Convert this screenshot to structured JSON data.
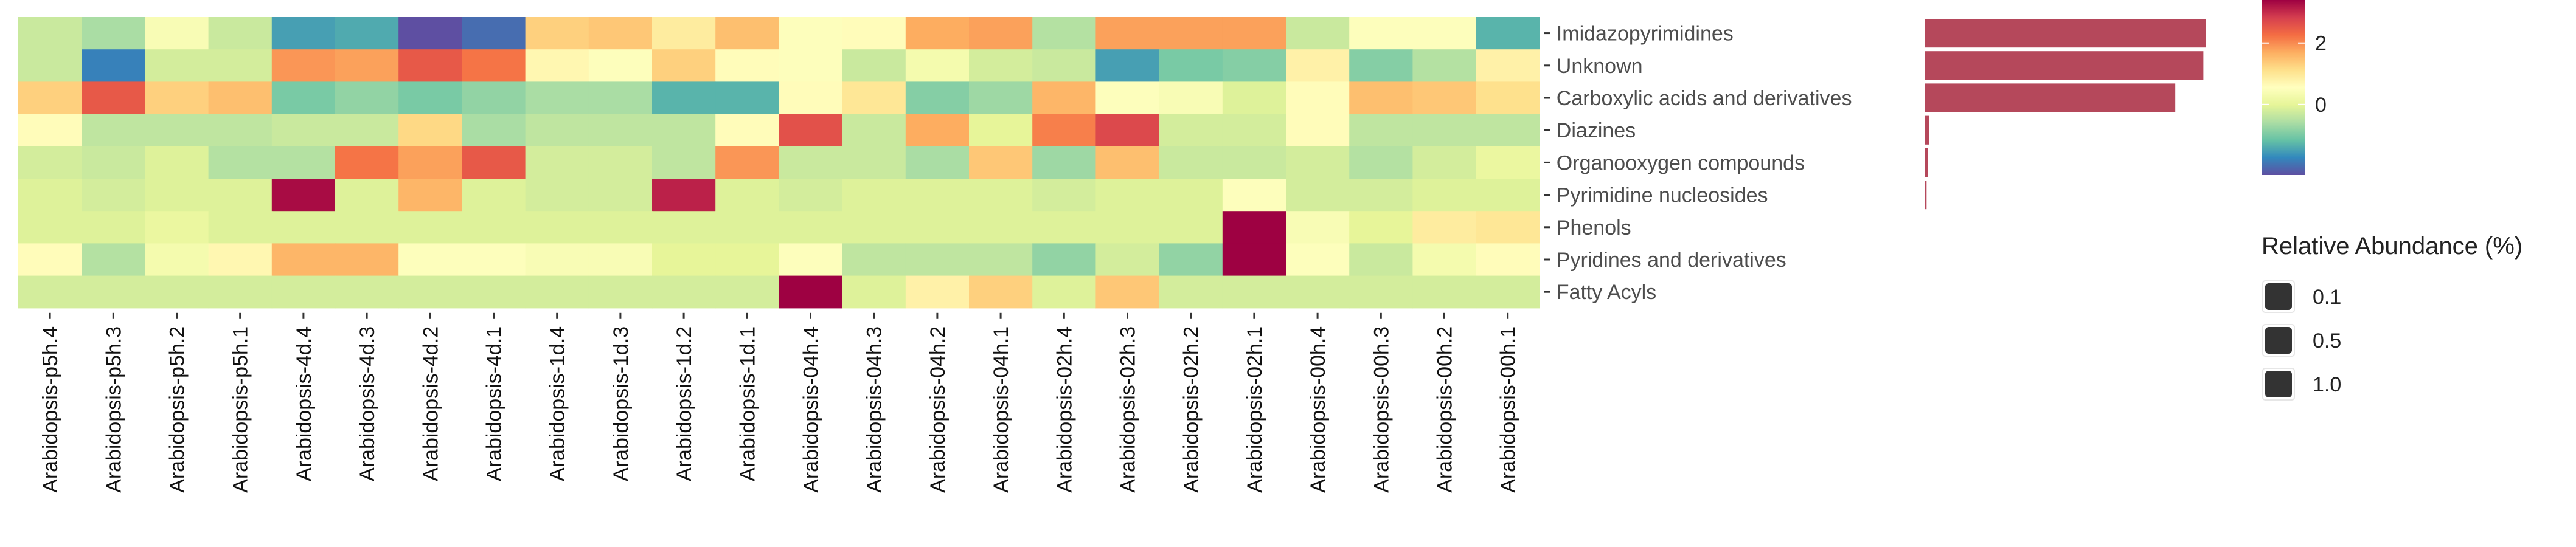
{
  "chart_data": {
    "type": "heatmap",
    "title": "",
    "xlabel": "",
    "ylabel": "",
    "columns": [
      "Arabidopsis-p5h.4",
      "Arabidopsis-p5h.3",
      "Arabidopsis-p5h.2",
      "Arabidopsis-p5h.1",
      "Arabidopsis-4d.4",
      "Arabidopsis-4d.3",
      "Arabidopsis-4d.2",
      "Arabidopsis-4d.1",
      "Arabidopsis-1d.4",
      "Arabidopsis-1d.3",
      "Arabidopsis-1d.2",
      "Arabidopsis-1d.1",
      "Arabidopsis-04h.4",
      "Arabidopsis-04h.3",
      "Arabidopsis-04h.2",
      "Arabidopsis-04h.1",
      "Arabidopsis-02h.4",
      "Arabidopsis-02h.3",
      "Arabidopsis-02h.2",
      "Arabidopsis-02h.1",
      "Arabidopsis-00h.4",
      "Arabidopsis-00h.3",
      "Arabidopsis-00h.2",
      "Arabidopsis-00h.1"
    ],
    "rows": [
      "Imidazopyrimidines",
      "Unknown",
      "Carboxylic acids and derivatives",
      "Diazines",
      "Organooxygen compounds",
      "Pyrimidine nucleosides",
      "Phenols",
      "Pyridines and derivatives",
      "Fatty Acyls"
    ],
    "values": [
      [
        -0.3,
        -0.6,
        0.4,
        -0.3,
        -1.5,
        -1.4,
        -2.3,
        -2.0,
        1.3,
        1.4,
        0.9,
        1.5,
        0.5,
        0.6,
        1.7,
        1.8,
        -0.5,
        1.8,
        1.8,
        1.8,
        -0.3,
        0.5,
        0.5,
        -1.3
      ],
      [
        -0.3,
        -1.8,
        -0.2,
        -0.2,
        1.9,
        1.8,
        2.5,
        2.2,
        0.7,
        0.5,
        1.3,
        0.6,
        0.5,
        -0.3,
        0.3,
        -0.2,
        -0.3,
        -1.5,
        -1.0,
        -0.9,
        0.8,
        -0.9,
        -0.5,
        0.8
      ],
      [
        1.3,
        2.5,
        1.3,
        1.5,
        -1.0,
        -0.8,
        -1.0,
        -0.8,
        -0.6,
        -0.6,
        -1.3,
        -1.3,
        0.6,
        1.0,
        -0.9,
        -0.7,
        1.6,
        0.5,
        0.4,
        -0.1,
        0.6,
        1.5,
        1.4,
        1.1
      ],
      [
        0.6,
        -0.4,
        -0.4,
        -0.4,
        -0.3,
        -0.3,
        1.2,
        -0.6,
        -0.4,
        -0.4,
        -0.4,
        0.6,
        2.6,
        -0.3,
        1.7,
        0.0,
        2.1,
        2.7,
        -0.2,
        -0.2,
        0.6,
        -0.4,
        -0.4,
        -0.4
      ],
      [
        -0.2,
        -0.3,
        -0.1,
        -0.5,
        -0.5,
        2.2,
        1.8,
        2.5,
        -0.2,
        -0.2,
        -0.4,
        1.9,
        -0.3,
        -0.3,
        -0.6,
        1.4,
        -0.7,
        1.5,
        -0.3,
        -0.3,
        -0.2,
        -0.5,
        -0.2,
        0.1
      ],
      [
        -0.1,
        -0.2,
        -0.1,
        -0.1,
        3.3,
        -0.1,
        1.6,
        -0.1,
        -0.2,
        -0.2,
        3.1,
        -0.1,
        -0.2,
        -0.1,
        -0.1,
        -0.1,
        -0.2,
        -0.1,
        -0.1,
        0.5,
        -0.2,
        -0.2,
        -0.1,
        -0.1
      ],
      [
        -0.1,
        -0.1,
        0.1,
        -0.1,
        -0.1,
        -0.1,
        -0.1,
        -0.1,
        -0.1,
        -0.1,
        -0.1,
        -0.1,
        -0.1,
        -0.1,
        -0.1,
        -0.1,
        -0.1,
        -0.1,
        -0.1,
        4.6,
        0.4,
        0.0,
        0.9,
        1.0
      ],
      [
        0.6,
        -0.5,
        0.3,
        0.7,
        1.6,
        1.6,
        0.5,
        0.5,
        0.4,
        0.4,
        0.0,
        0.0,
        0.5,
        -0.4,
        -0.4,
        -0.4,
        -0.8,
        -0.2,
        -0.8,
        4.2,
        0.5,
        -0.3,
        0.3,
        0.6
      ],
      [
        -0.2,
        -0.2,
        -0.2,
        -0.2,
        -0.2,
        -0.2,
        -0.2,
        -0.2,
        -0.2,
        -0.2,
        -0.2,
        -0.2,
        4.2,
        -0.1,
        0.8,
        1.3,
        -0.1,
        1.4,
        -0.2,
        -0.2,
        -0.2,
        -0.2,
        -0.2,
        -0.2
      ]
    ],
    "color_scale": {
      "ticks": [
        0,
        2
      ],
      "range": [
        -2.3,
        3.4
      ],
      "palette": [
        "#5e4fa2",
        "#3288bd",
        "#66c2a5",
        "#abdda4",
        "#e6f598",
        "#ffffbf",
        "#fee08b",
        "#fdae61",
        "#f46d43",
        "#d53e4f",
        "#9e0142"
      ]
    },
    "relative_abundance": {
      "values": [
        1.0,
        0.99,
        0.89,
        0.015,
        0.01,
        0.005,
        0,
        0,
        0
      ],
      "max": 1.0,
      "bar_color": "#b5485b"
    },
    "size_legend": {
      "title": "Relative Abundance (%)",
      "labels": [
        "0.1",
        "0.5",
        "1.0"
      ],
      "key_color": "#333333"
    }
  }
}
